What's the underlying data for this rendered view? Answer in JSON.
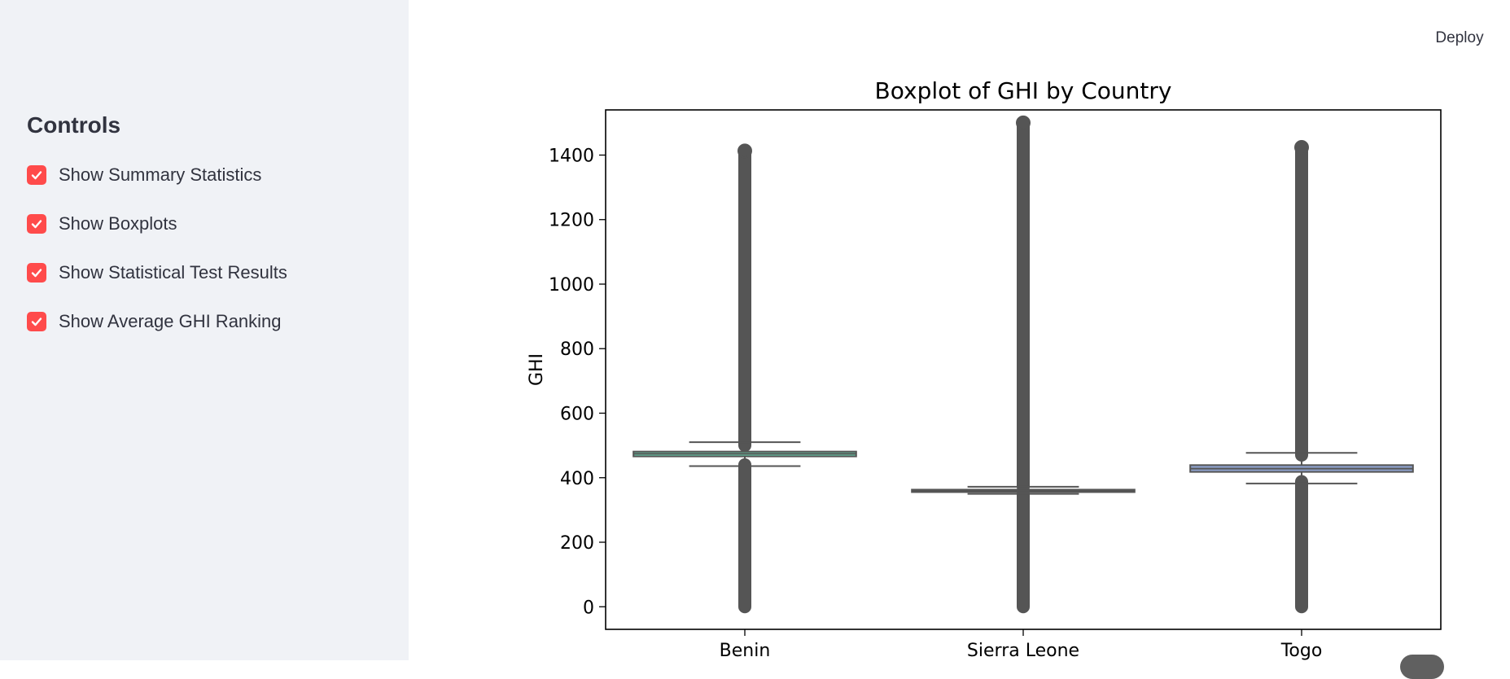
{
  "header": {
    "deploy_label": "Deploy"
  },
  "sidebar": {
    "title": "Controls",
    "checkboxes": [
      {
        "label": "Show Summary Statistics",
        "checked": true
      },
      {
        "label": "Show Boxplots",
        "checked": true
      },
      {
        "label": "Show Statistical Test Results",
        "checked": true
      },
      {
        "label": "Show Average GHI Ranking",
        "checked": true
      }
    ],
    "accent_color": "#ff4b4b"
  },
  "chart_data": {
    "type": "boxplot",
    "title": "Boxplot of GHI by Country",
    "xlabel": "",
    "ylabel": "GHI",
    "ylim": [
      -70,
      1540
    ],
    "yticks": [
      0,
      200,
      400,
      600,
      800,
      1000,
      1200,
      1400
    ],
    "categories": [
      "Benin",
      "Sierra Leone",
      "Togo"
    ],
    "boxes": [
      {
        "category": "Benin",
        "q1": 466,
        "median": 474,
        "q3": 481,
        "whisker_low": 436,
        "whisker_high": 510,
        "outliers_low": [
          0,
          440
        ],
        "outliers_high": [
          500,
          1413
        ],
        "color": "#66c2a5"
      },
      {
        "category": "Sierra Leone",
        "q1": 356,
        "median": 360,
        "q3": 363,
        "whisker_low": 350,
        "whisker_high": 372,
        "outliers_low": [
          0,
          350
        ],
        "outliers_high": [
          372,
          1500
        ],
        "color": "#fc8d62"
      },
      {
        "category": "Togo",
        "q1": 418,
        "median": 428,
        "q3": 439,
        "whisker_low": 382,
        "whisker_high": 477,
        "outliers_low": [
          0,
          388
        ],
        "outliers_high": [
          470,
          1424
        ],
        "color": "#8da0cb"
      }
    ],
    "grid": false,
    "legend": "none"
  }
}
